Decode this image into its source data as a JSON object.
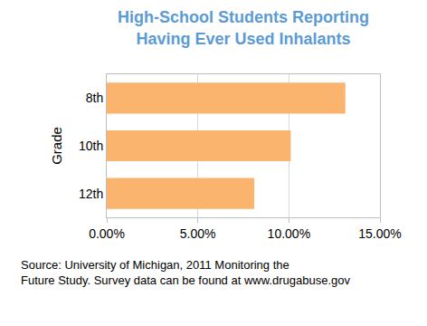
{
  "chart_data": {
    "type": "bar",
    "orientation": "horizontal",
    "title": "High-School Students Reporting\nHaving Ever Used Inhalants",
    "ylabel": "Grade",
    "categories": [
      "8th",
      "10th",
      "12th"
    ],
    "values": [
      13.1,
      10.1,
      8.1
    ],
    "color": "#fbb46e",
    "xlim": [
      0,
      15
    ],
    "xticks": [
      {
        "value": 0,
        "label": "0.00%"
      },
      {
        "value": 5,
        "label": "5.00%"
      },
      {
        "value": 10,
        "label": "10.00%"
      },
      {
        "value": 15,
        "label": "15.00%"
      }
    ],
    "grid": true,
    "annotations": [
      "Source: University of Michigan, 2011 Monitoring the",
      "Future Study. Survey data can be found at www.drugabuse.gov"
    ]
  }
}
